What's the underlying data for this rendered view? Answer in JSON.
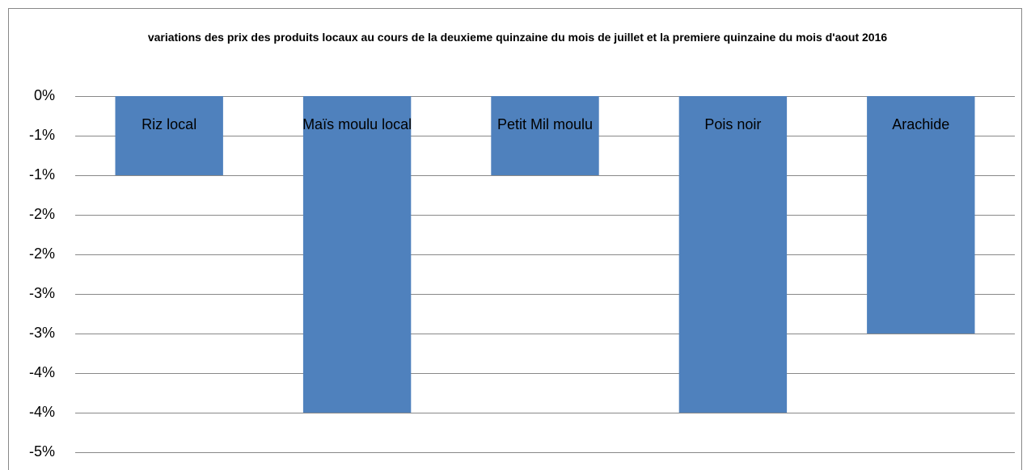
{
  "chart_data": {
    "type": "bar",
    "title": "variations des prix des produits locaux au cours de la deuxieme quinzaine du mois de juillet et la premiere quinzaine du mois d'aout 2016",
    "categories": [
      "Riz local",
      "Maïs moulu local",
      "Petit Mil moulu",
      "Pois noir",
      "Arachide"
    ],
    "values": [
      -1,
      -4,
      -1,
      -4,
      -3
    ],
    "color": "#4f81bd",
    "ylim": [
      -4.5,
      0
    ],
    "yticks": [
      {
        "value": 0,
        "label": "0%"
      },
      {
        "value": -0.5,
        "label": "-1%"
      },
      {
        "value": -1,
        "label": "-1%"
      },
      {
        "value": -1.5,
        "label": "-2%"
      },
      {
        "value": -2,
        "label": "-2%"
      },
      {
        "value": -2.5,
        "label": "-3%"
      },
      {
        "value": -3,
        "label": "-3%"
      },
      {
        "value": -3.5,
        "label": "-4%"
      },
      {
        "value": -4,
        "label": "-4%"
      },
      {
        "value": -4.5,
        "label": "-5%"
      }
    ],
    "grid": true
  }
}
